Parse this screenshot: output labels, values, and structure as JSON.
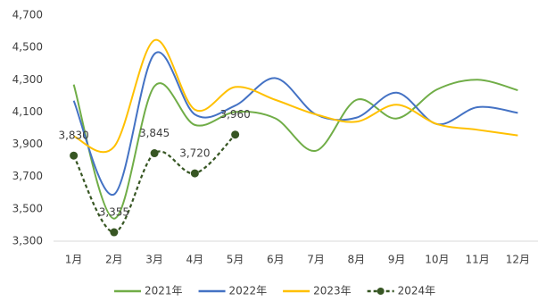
{
  "chart_data": {
    "type": "line",
    "categories": [
      "1月",
      "2月",
      "3月",
      "4月",
      "5月",
      "6月",
      "7月",
      "8月",
      "9月",
      "10月",
      "11月",
      "12月"
    ],
    "series": [
      {
        "name": "2021年",
        "color": "#70ad47",
        "values": [
          4270,
          3440,
          4260,
          4020,
          4100,
          4060,
          3860,
          4175,
          4060,
          4240,
          4300,
          4235
        ]
      },
      {
        "name": "2022年",
        "color": "#4472c4",
        "values": [
          4170,
          3590,
          4460,
          4085,
          4140,
          4310,
          4085,
          4065,
          4220,
          4025,
          4130,
          4095
        ]
      },
      {
        "name": "2023年",
        "color": "#ffc000",
        "values": [
          3950,
          3885,
          4545,
          4115,
          4255,
          4175,
          4085,
          4040,
          4145,
          4025,
          3990,
          3955
        ]
      },
      {
        "name": "2024年",
        "color": "#375623",
        "dashed": true,
        "markers": true,
        "values": [
          3830,
          3355,
          3845,
          3720,
          3960,
          null,
          null,
          null,
          null,
          null,
          null,
          null
        ],
        "value_labels": [
          "3,830",
          "3,355",
          "3,845",
          "3,720",
          "3,960",
          null,
          null,
          null,
          null,
          null,
          null,
          null
        ]
      }
    ],
    "ylim": [
      3300,
      4700
    ],
    "yticks": [
      {
        "value": 3300,
        "label": "3,300"
      },
      {
        "value": 3500,
        "label": "3,500"
      },
      {
        "value": 3700,
        "label": "3,700"
      },
      {
        "value": 3900,
        "label": "3,900"
      },
      {
        "value": 4100,
        "label": "4,100"
      },
      {
        "value": 4300,
        "label": "4,300"
      },
      {
        "value": 4500,
        "label": "4,500"
      },
      {
        "value": 4700,
        "label": "4,700"
      }
    ],
    "legend": "bottom"
  }
}
